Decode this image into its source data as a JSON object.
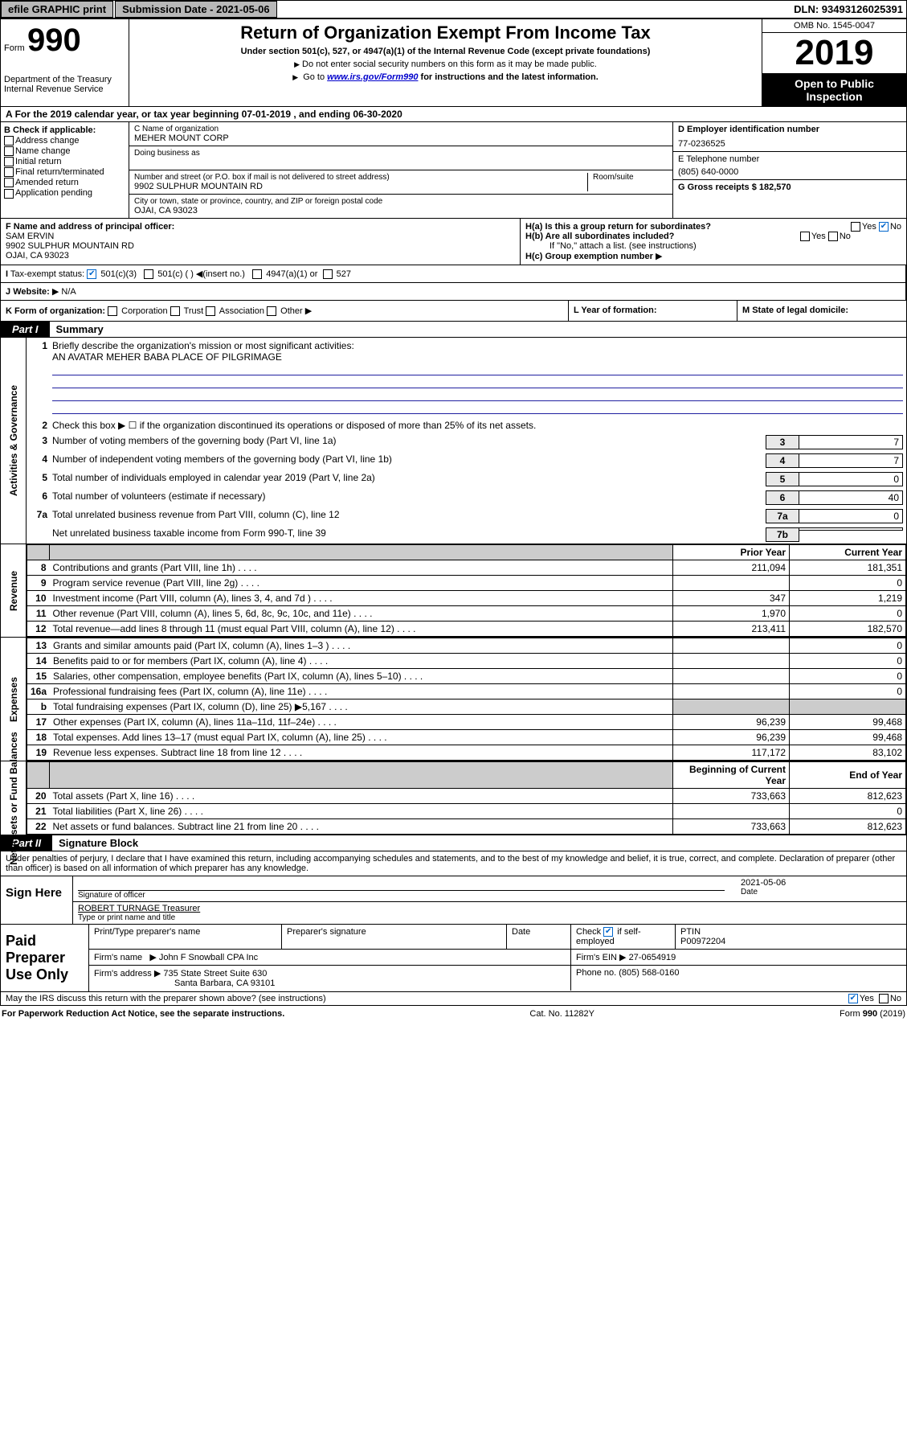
{
  "topbar": {
    "efile": "efile GRAPHIC print",
    "subdate_label": "Submission Date - 2021-05-06",
    "dln": "DLN: 93493126025391"
  },
  "header": {
    "form_label": "Form",
    "form_num": "990",
    "dept": "Department of the Treasury\nInternal Revenue Service",
    "title": "Return of Organization Exempt From Income Tax",
    "sub": "Under section 501(c), 527, or 4947(a)(1) of the Internal Revenue Code (except private foundations)",
    "note1": "Do not enter social security numbers on this form as it may be made public.",
    "note2_pre": "Go to ",
    "note2_link": "www.irs.gov/Form990",
    "note2_post": " for instructions and the latest information.",
    "omb": "OMB No. 1545-0047",
    "year": "2019",
    "open": "Open to Public Inspection"
  },
  "period": "For the 2019 calendar year, or tax year beginning 07-01-2019    , and ending 06-30-2020",
  "boxB": {
    "title": "B Check if applicable:",
    "items": [
      "Address change",
      "Name change",
      "Initial return",
      "Final return/terminated",
      "Amended return",
      "Application pending"
    ]
  },
  "boxC": {
    "name_label": "C Name of organization",
    "name": "MEHER MOUNT CORP",
    "dba": "Doing business as",
    "street_label": "Number and street (or P.O. box if mail is not delivered to street address)",
    "room": "Room/suite",
    "street": "9902 SULPHUR MOUNTAIN RD",
    "city_label": "City or town, state or province, country, and ZIP or foreign postal code",
    "city": "OJAI, CA  93023"
  },
  "boxD": {
    "label": "D Employer identification number",
    "value": "77-0236525"
  },
  "boxE": {
    "label": "E Telephone number",
    "value": "(805) 640-0000"
  },
  "boxG": {
    "label": "G Gross receipts $ 182,570"
  },
  "boxF": {
    "label": "F  Name and address of principal officer:",
    "name": "SAM ERVIN",
    "street": "9902 SULPHUR MOUNTAIN RD",
    "city": "OJAI, CA  93023"
  },
  "boxH": {
    "a": "H(a)  Is this a group return for subordinates?",
    "b": "H(b)  Are all subordinates included?",
    "note": "If \"No,\" attach a list. (see instructions)",
    "c": "H(c)  Group exemption number"
  },
  "boxI": {
    "label": "Tax-exempt status:",
    "opts": [
      "501(c)(3)",
      "501(c) (  )",
      "(insert no.)",
      "4947(a)(1) or",
      "527"
    ]
  },
  "boxJ": {
    "label": "Website:",
    "value": "N/A"
  },
  "boxK": {
    "label": "K Form of organization:",
    "opts": [
      "Corporation",
      "Trust",
      "Association",
      "Other"
    ],
    "L": "L Year of formation:",
    "M": "M State of legal domicile:"
  },
  "part1": {
    "tab": "Part I",
    "title": "Summary"
  },
  "mission": {
    "q": "Briefly describe the organization's mission or most significant activities:",
    "a": "AN AVATAR MEHER BABA PLACE OF PILGRIMAGE"
  },
  "gov": {
    "side": "Activities & Governance",
    "l2": "Check this box ▶ ☐  if the organization discontinued its operations or disposed of more than 25% of its net assets.",
    "l3": "Number of voting members of the governing body (Part VI, line 1a)",
    "l4": "Number of independent voting members of the governing body (Part VI, line 1b)",
    "l5": "Total number of individuals employed in calendar year 2019 (Part V, line 2a)",
    "l6": "Total number of volunteers (estimate if necessary)",
    "l7a": "Total unrelated business revenue from Part VIII, column (C), line 12",
    "l7b": "Net unrelated business taxable income from Form 990-T, line 39",
    "v3": "7",
    "v4": "7",
    "v5": "0",
    "v6": "40",
    "v7a": "0",
    "v7b": ""
  },
  "revhdr": {
    "prior": "Prior Year",
    "current": "Current Year"
  },
  "rev": {
    "side": "Revenue",
    "rows": [
      {
        "n": "8",
        "t": "Contributions and grants (Part VIII, line 1h)",
        "p": "211,094",
        "c": "181,351"
      },
      {
        "n": "9",
        "t": "Program service revenue (Part VIII, line 2g)",
        "p": "",
        "c": "0"
      },
      {
        "n": "10",
        "t": "Investment income (Part VIII, column (A), lines 3, 4, and 7d )",
        "p": "347",
        "c": "1,219"
      },
      {
        "n": "11",
        "t": "Other revenue (Part VIII, column (A), lines 5, 6d, 8c, 9c, 10c, and 11e)",
        "p": "1,970",
        "c": "0"
      },
      {
        "n": "12",
        "t": "Total revenue—add lines 8 through 11 (must equal Part VIII, column (A), line 12)",
        "p": "213,411",
        "c": "182,570"
      }
    ]
  },
  "exp": {
    "side": "Expenses",
    "rows": [
      {
        "n": "13",
        "t": "Grants and similar amounts paid (Part IX, column (A), lines 1–3 )",
        "p": "",
        "c": "0"
      },
      {
        "n": "14",
        "t": "Benefits paid to or for members (Part IX, column (A), line 4)",
        "p": "",
        "c": "0"
      },
      {
        "n": "15",
        "t": "Salaries, other compensation, employee benefits (Part IX, column (A), lines 5–10)",
        "p": "",
        "c": "0"
      },
      {
        "n": "16a",
        "t": "Professional fundraising fees (Part IX, column (A), line 11e)",
        "p": "",
        "c": "0"
      },
      {
        "n": "b",
        "t": "Total fundraising expenses (Part IX, column (D), line 25) ▶5,167",
        "p": "SHADE",
        "c": "SHADE"
      },
      {
        "n": "17",
        "t": "Other expenses (Part IX, column (A), lines 11a–11d, 11f–24e)",
        "p": "96,239",
        "c": "99,468"
      },
      {
        "n": "18",
        "t": "Total expenses. Add lines 13–17 (must equal Part IX, column (A), line 25)",
        "p": "96,239",
        "c": "99,468"
      },
      {
        "n": "19",
        "t": "Revenue less expenses. Subtract line 18 from line 12",
        "p": "117,172",
        "c": "83,102"
      }
    ]
  },
  "nethdr": {
    "begin": "Beginning of Current Year",
    "end": "End of Year"
  },
  "net": {
    "side": "Net Assets or Fund Balances",
    "rows": [
      {
        "n": "20",
        "t": "Total assets (Part X, line 16)",
        "p": "733,663",
        "c": "812,623"
      },
      {
        "n": "21",
        "t": "Total liabilities (Part X, line 26)",
        "p": "",
        "c": "0"
      },
      {
        "n": "22",
        "t": "Net assets or fund balances. Subtract line 21 from line 20",
        "p": "733,663",
        "c": "812,623"
      }
    ]
  },
  "part2": {
    "tab": "Part II",
    "title": "Signature Block",
    "decl": "Under penalties of perjury, I declare that I have examined this return, including accompanying schedules and statements, and to the best of my knowledge and belief, it is true, correct, and complete. Declaration of preparer (other than officer) is based on all information of which preparer has any knowledge."
  },
  "sign": {
    "label": "Sign Here",
    "sig_officer": "Signature of officer",
    "date": "2021-05-06",
    "date_label": "Date",
    "name": "ROBERT TURNAGE Treasurer",
    "name_label": "Type or print name and title"
  },
  "prep": {
    "label": "Paid Preparer Use Only",
    "h1": "Print/Type preparer's name",
    "h2": "Preparer's signature",
    "h3": "Date",
    "h4": "Check ☑ if self-employed",
    "h5": "PTIN",
    "ptin": "P00972204",
    "firm_name_label": "Firm's name",
    "firm_name": "John F Snowball CPA Inc",
    "firm_ein_label": "Firm's EIN",
    "firm_ein": "27-0654919",
    "firm_addr_label": "Firm's address",
    "firm_addr1": "735 State Street Suite 630",
    "firm_addr2": "Santa Barbara, CA  93101",
    "phone_label": "Phone no.",
    "phone": "(805) 568-0160"
  },
  "discuss": "May the IRS discuss this return with the preparer shown above? (see instructions)",
  "footer": {
    "left": "For Paperwork Reduction Act Notice, see the separate instructions.",
    "mid": "Cat. No. 11282Y",
    "right": "Form 990 (2019)"
  }
}
